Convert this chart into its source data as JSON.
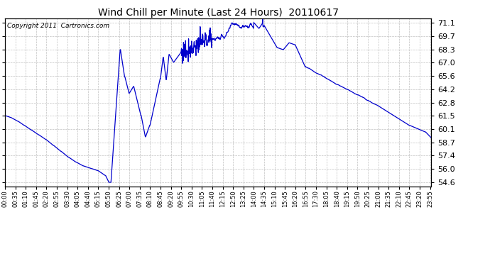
{
  "title": "Wind Chill per Minute (Last 24 Hours)  20110617",
  "copyright": "Copyright 2011  Cartronics.com",
  "line_color": "#0000cc",
  "bg_color": "#ffffff",
  "grid_color": "#c0c0c0",
  "ylim": [
    54.2,
    71.5
  ],
  "yticks": [
    54.6,
    56.0,
    57.4,
    58.7,
    60.1,
    61.5,
    62.8,
    64.2,
    65.6,
    67.0,
    68.3,
    69.7,
    71.1
  ],
  "xtick_labels": [
    "00:00",
    "00:35",
    "01:10",
    "01:45",
    "02:20",
    "02:55",
    "03:30",
    "04:05",
    "04:40",
    "05:15",
    "05:50",
    "06:25",
    "07:00",
    "07:35",
    "08:10",
    "08:45",
    "09:20",
    "09:55",
    "10:30",
    "11:05",
    "11:40",
    "12:15",
    "12:50",
    "13:25",
    "14:00",
    "14:35",
    "15:10",
    "15:45",
    "16:20",
    "16:55",
    "17:30",
    "18:05",
    "18:40",
    "19:15",
    "19:50",
    "20:25",
    "21:00",
    "21:35",
    "22:10",
    "22:45",
    "23:20",
    "23:55"
  ],
  "num_points": 1440
}
